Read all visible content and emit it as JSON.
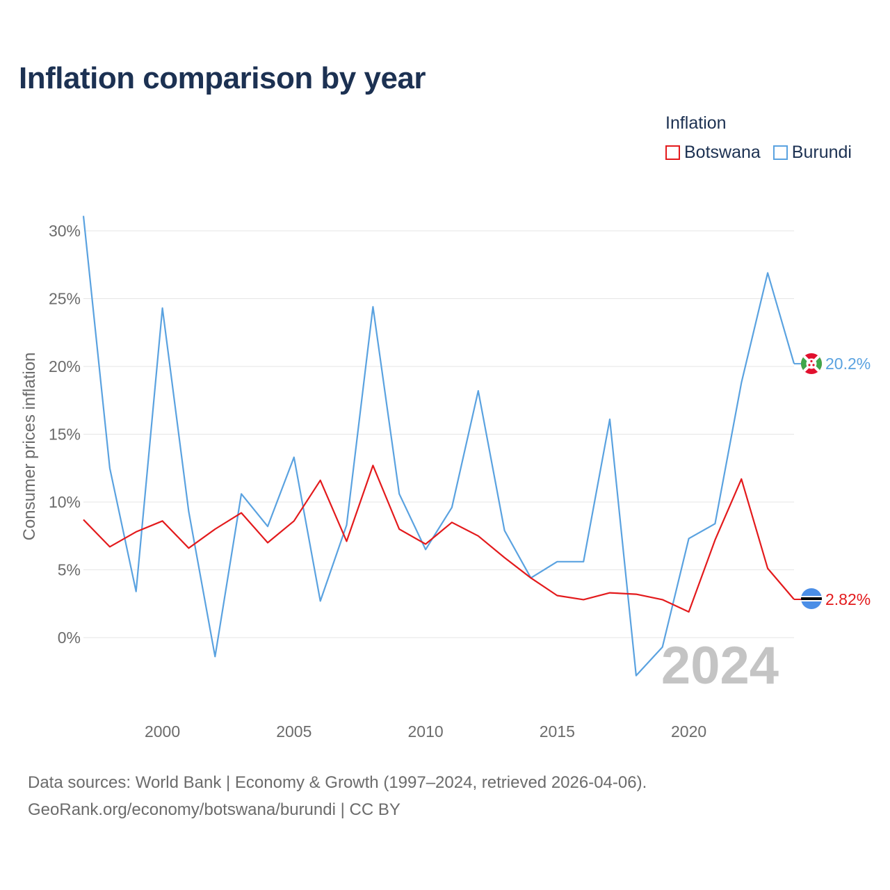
{
  "title": "Inflation comparison by year",
  "legend": {
    "title": "Inflation",
    "items": [
      {
        "label": "Botswana",
        "color": "#e31a1c"
      },
      {
        "label": "Burundi",
        "color": "#5aa2e0"
      }
    ]
  },
  "source": {
    "line1": "Data sources: World Bank | Economy & Growth (1997–2024, retrieved 2026-04-06).",
    "line2": "GeoRank.org/economy/botswana/burundi | CC BY"
  },
  "chart_data": {
    "type": "line",
    "title": "Inflation comparison by year",
    "xlabel": "",
    "ylabel": "Consumer prices inflation",
    "watermark": "2024",
    "xlim": [
      1997,
      2024
    ],
    "ylim": [
      -5,
      31
    ],
    "yticks": [
      0,
      5,
      10,
      15,
      20,
      25,
      30
    ],
    "ytick_labels": [
      "0%",
      "5%",
      "10%",
      "15%",
      "20%",
      "25%",
      "30%"
    ],
    "xticks": [
      2000,
      2005,
      2010,
      2015,
      2020
    ],
    "xtick_labels": [
      "2000",
      "2005",
      "2010",
      "2015",
      "2020"
    ],
    "grid": true,
    "legend_position": "top-right",
    "x": [
      1997,
      1998,
      1999,
      2000,
      2001,
      2002,
      2003,
      2004,
      2005,
      2006,
      2007,
      2008,
      2009,
      2010,
      2011,
      2012,
      2013,
      2014,
      2015,
      2016,
      2017,
      2018,
      2019,
      2020,
      2021,
      2022,
      2023,
      2024
    ],
    "series": [
      {
        "name": "Botswana",
        "color": "#e31a1c",
        "end_label": "2.82%",
        "flag": "botswana-flag",
        "values": [
          8.7,
          6.7,
          7.8,
          8.6,
          6.6,
          8.0,
          9.2,
          7.0,
          8.6,
          11.6,
          7.1,
          12.7,
          8.0,
          6.9,
          8.5,
          7.5,
          5.9,
          4.4,
          3.1,
          2.8,
          3.3,
          3.2,
          2.8,
          1.9,
          7.2,
          11.7,
          5.1,
          2.82
        ]
      },
      {
        "name": "Burundi",
        "color": "#5aa2e0",
        "end_label": "20.2%",
        "flag": "burundi-flag",
        "values": [
          31.1,
          12.5,
          3.4,
          24.3,
          9.3,
          -1.4,
          10.6,
          8.2,
          13.3,
          2.7,
          8.3,
          24.4,
          10.6,
          6.5,
          9.6,
          18.2,
          7.9,
          4.4,
          5.6,
          5.6,
          16.1,
          -2.8,
          -0.7,
          7.3,
          8.4,
          18.8,
          26.9,
          20.2
        ]
      }
    ]
  }
}
